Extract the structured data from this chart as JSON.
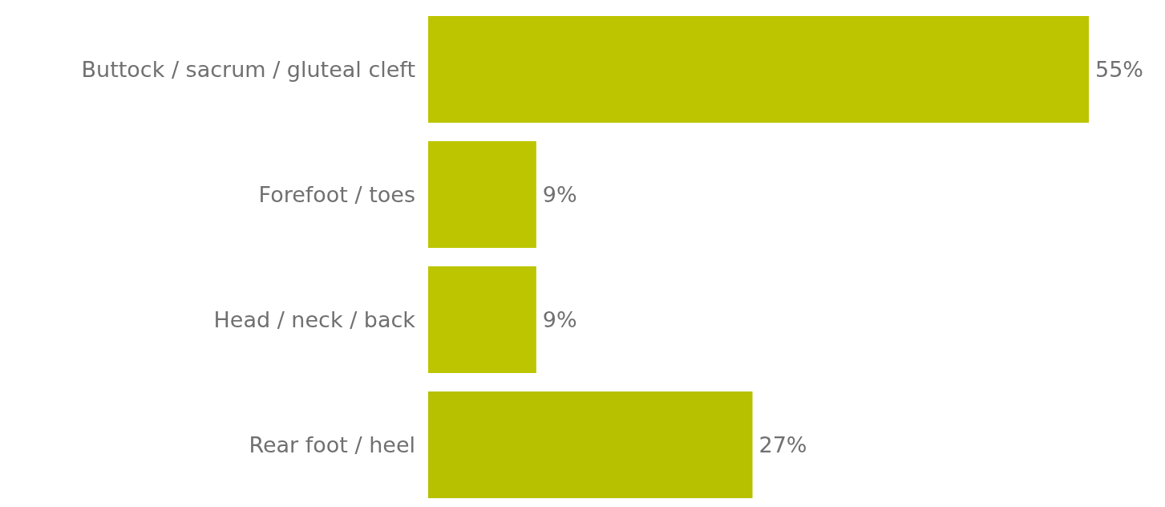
{
  "chart_data": {
    "type": "bar",
    "orientation": "horizontal",
    "categories": [
      "Buttock / sacrum / gluteal cleft",
      "Forefoot / toes",
      "Head / neck / back",
      "Rear foot / heel"
    ],
    "values": [
      55,
      9,
      9,
      27
    ],
    "colors": [
      "#bcc500",
      "#bcc500",
      "#bcc500",
      "#b7c100"
    ],
    "value_labels": [
      "55%",
      "9%",
      "9%",
      "27%"
    ]
  }
}
